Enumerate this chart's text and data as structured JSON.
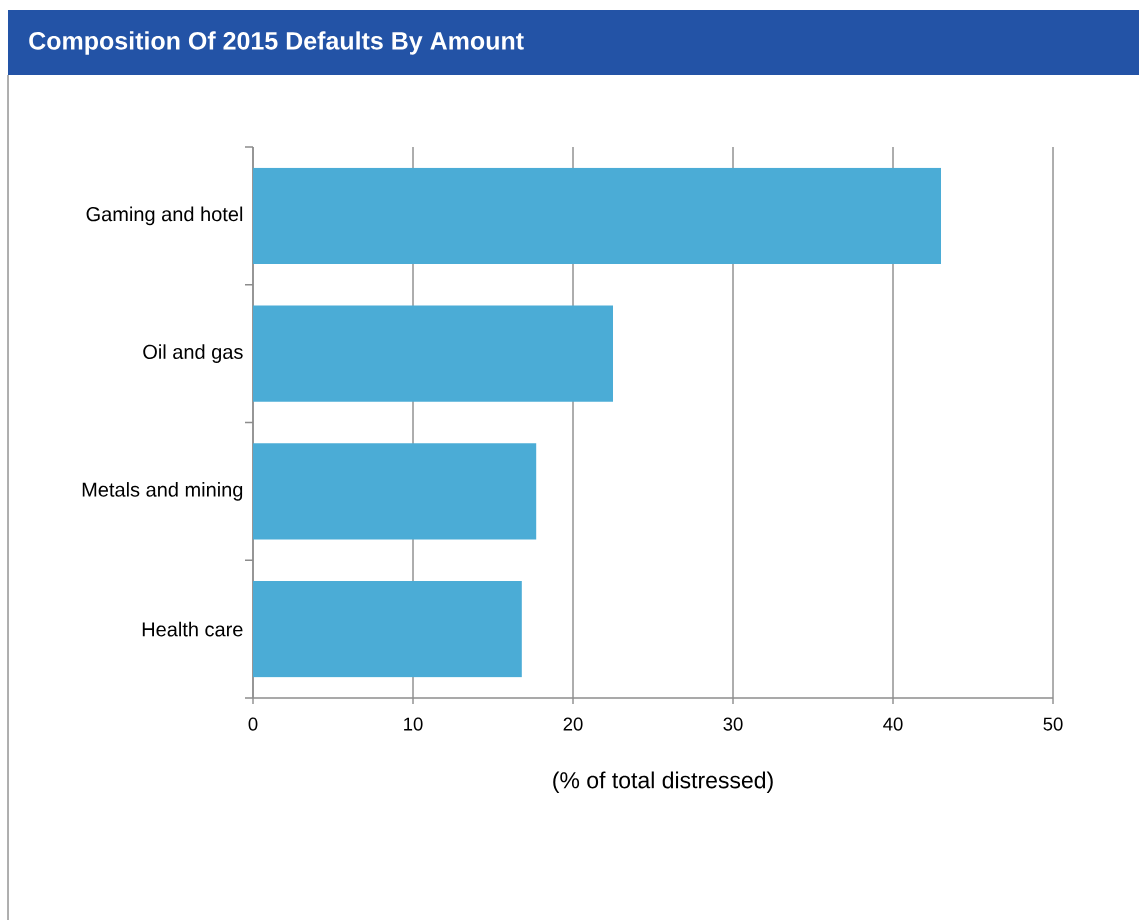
{
  "chart_data": {
    "type": "bar",
    "orientation": "horizontal",
    "title": "Composition Of 2015 Defaults By Amount",
    "xlabel": "(% of total distressed)",
    "categories": [
      "Gaming and hotel",
      "Oil and gas",
      "Metals and mining",
      "Health care"
    ],
    "values": [
      43.0,
      22.5,
      17.7,
      16.8
    ],
    "color": "#4bacd6",
    "xlim": [
      0,
      50
    ],
    "xticks": [
      0,
      10,
      20,
      30,
      40,
      50
    ],
    "grid": "x"
  }
}
